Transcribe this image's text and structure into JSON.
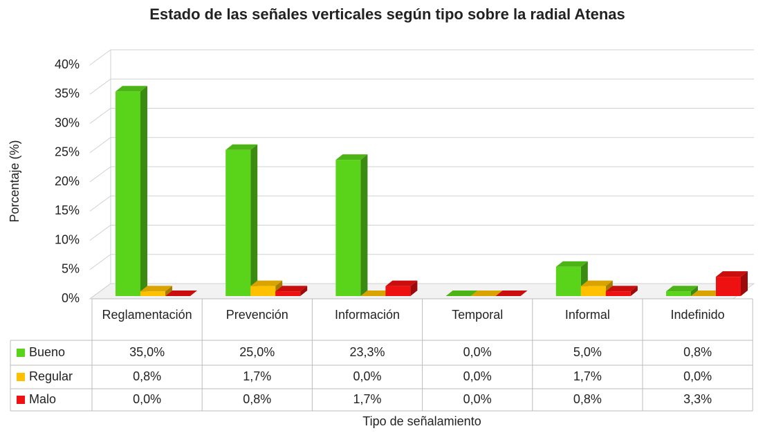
{
  "chart_data": {
    "type": "bar3d",
    "title": "Estado de las señales verticales según tipo sobre la radial Atenas",
    "y_label": "Porcentaje (%)",
    "x_label": "Tipo de señalamiento",
    "categories": [
      "Reglamentación",
      "Prevención",
      "Información",
      "Temporal",
      "Informal",
      "Indefinido"
    ],
    "series": [
      {
        "name": "Bueno",
        "color": "#5ad41a",
        "values": [
          35.0,
          25.0,
          23.3,
          0.0,
          5.0,
          0.8
        ],
        "value_labels": [
          "35,0%",
          "25,0%",
          "23,3%",
          "0,0%",
          "5,0%",
          "0,8%"
        ]
      },
      {
        "name": "Regular",
        "color": "#ffc000",
        "values": [
          0.8,
          1.7,
          0.0,
          0.0,
          1.7,
          0.0
        ],
        "value_labels": [
          "0,8%",
          "1,7%",
          "0,0%",
          "0,0%",
          "1,7%",
          "0,0%"
        ]
      },
      {
        "name": "Malo",
        "color": "#ee1111",
        "values": [
          0.0,
          0.8,
          1.7,
          0.0,
          0.8,
          3.3
        ],
        "value_labels": [
          "0,0%",
          "0,8%",
          "1,7%",
          "0,0%",
          "0,8%",
          "3,3%"
        ]
      }
    ],
    "ylim": [
      0,
      40
    ],
    "yticks": [
      {
        "value": 0,
        "label": "0%"
      },
      {
        "value": 5,
        "label": "5%"
      },
      {
        "value": 10,
        "label": "10%"
      },
      {
        "value": 15,
        "label": "15%"
      },
      {
        "value": 20,
        "label": "20%"
      },
      {
        "value": 25,
        "label": "25%"
      },
      {
        "value": 30,
        "label": "30%"
      },
      {
        "value": 35,
        "label": "35%"
      },
      {
        "value": 40,
        "label": "40%"
      }
    ],
    "grid": true
  }
}
